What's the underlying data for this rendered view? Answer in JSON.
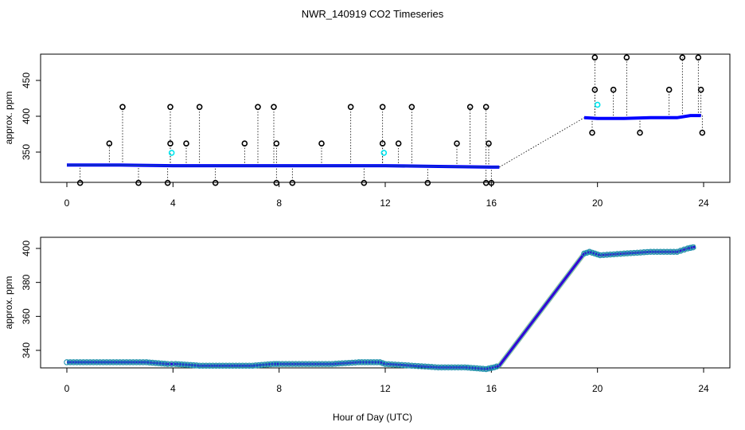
{
  "figure": {
    "title": "NWR_140919  CO2 Timeseries",
    "xlabel": "Hour of Day (UTC)"
  },
  "chart_data": [
    {
      "type": "scatter",
      "name": "raw-with-outliers",
      "ylabel": "approx. ppm",
      "xlim": [
        0,
        24
      ],
      "ylim": [
        300,
        485
      ],
      "xticks": [
        0,
        4,
        8,
        12,
        16,
        20,
        24
      ],
      "yticks": [
        350,
        400,
        450
      ],
      "series": [
        {
          "name": "baseline",
          "color": "#0000ff",
          "x": [
            0.0,
            2.0,
            4.0,
            6.0,
            8.0,
            10.0,
            12.0,
            14.0,
            16.0,
            16.3,
            19.5,
            20.0,
            21.0,
            22.0,
            23.0,
            23.5,
            23.9
          ],
          "y": [
            332,
            332,
            331,
            331,
            331,
            331,
            331,
            330,
            329,
            329,
            398,
            397,
            397,
            398,
            398,
            401,
            401
          ]
        },
        {
          "name": "outlier-points",
          "color": "#000000",
          "x": [
            0.5,
            1.6,
            2.1,
            2.7,
            3.8,
            3.9,
            3.9,
            4.5,
            5.0,
            5.6,
            6.7,
            7.2,
            7.8,
            7.9,
            7.9,
            8.5,
            9.6,
            10.7,
            11.2,
            11.9,
            11.9,
            12.5,
            13.0,
            13.6,
            14.7,
            15.2,
            15.8,
            15.9,
            15.8,
            16.0,
            19.8,
            19.9,
            19.9,
            20.6,
            21.1,
            21.6,
            22.7,
            23.2,
            23.8,
            23.9,
            23.95
          ],
          "y": [
            307,
            362,
            413,
            307,
            307,
            362,
            413,
            362,
            413,
            307,
            362,
            413,
            413,
            362,
            307,
            307,
            362,
            413,
            307,
            413,
            362,
            362,
            413,
            307,
            362,
            413,
            413,
            362,
            307,
            307,
            377,
            437,
            482,
            437,
            482,
            377,
            437,
            482,
            482,
            437,
            377
          ]
        },
        {
          "name": "flagged-points",
          "color": "#00e5ee",
          "x": [
            3.95,
            11.95,
            20.0
          ],
          "y": [
            349,
            349,
            416
          ]
        }
      ]
    },
    {
      "type": "scatter",
      "name": "filtered",
      "ylabel": "approx. ppm",
      "xlim": [
        0,
        24
      ],
      "ylim": [
        327,
        404
      ],
      "xticks": [
        0,
        4,
        8,
        12,
        16,
        20,
        24
      ],
      "yticks": [
        340,
        360,
        380,
        400
      ],
      "series": [
        {
          "name": "filtered-co2",
          "color": "#0000ff",
          "x": [
            0.0,
            1.0,
            2.0,
            3.0,
            3.8,
            4.1,
            5.0,
            6.0,
            7.0,
            7.8,
            8.0,
            9.0,
            10.0,
            11.0,
            11.8,
            12.0,
            13.0,
            14.0,
            15.0,
            15.8,
            16.1,
            16.3,
            19.5,
            19.7,
            19.9,
            20.1,
            21.0,
            22.0,
            23.0,
            23.4,
            23.7
          ],
          "y": [
            333,
            333,
            333,
            333,
            332,
            332,
            331,
            331,
            331,
            332,
            332,
            332,
            332,
            333,
            333,
            332,
            331,
            330,
            330,
            329,
            330,
            331,
            397,
            398,
            397,
            396,
            397,
            398,
            398,
            400,
            401
          ]
        }
      ]
    }
  ]
}
